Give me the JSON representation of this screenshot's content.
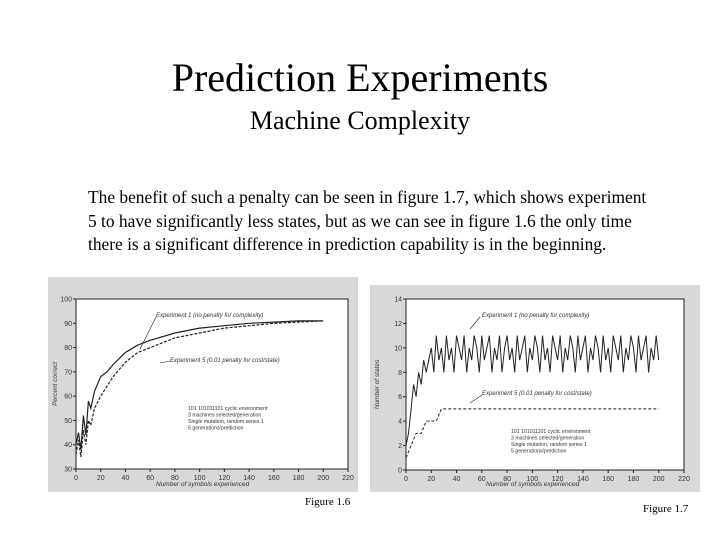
{
  "slide": {
    "title": "Prediction Experiments",
    "subtitle": "Machine Complexity",
    "body": "The benefit of such a penalty can be seen in figure 1.7, which shows experiment 5 to have significantly less states, but as we can see in figure 1.6 the only time there is a significant difference in prediction capability is in the beginning."
  },
  "colors": {
    "background": "#ffffff",
    "scan": "#d8d8d8",
    "ink": "#222222"
  },
  "chart_data": [
    {
      "type": "line",
      "caption": "Figure 1.6",
      "xlabel": "Number of symbols experienced",
      "ylabel": "Percent correct",
      "xlim": [
        0,
        220
      ],
      "ylim": [
        30,
        100
      ],
      "xticks": [
        0,
        20,
        40,
        60,
        80,
        100,
        120,
        140,
        160,
        180,
        200,
        220
      ],
      "xtick_labels": [
        "0",
        "20",
        "40",
        "60",
        "80",
        "100",
        "120",
        "140",
        "160",
        "180",
        "200",
        "220"
      ],
      "yticks": [
        30,
        40,
        50,
        60,
        70,
        80,
        90,
        100
      ],
      "series": [
        {
          "name": "Experiment 1 (no penalty for complexity)",
          "x": [
            0,
            2,
            4,
            6,
            8,
            10,
            12,
            15,
            20,
            25,
            30,
            40,
            50,
            60,
            80,
            100,
            120,
            140,
            160,
            180,
            200
          ],
          "y": [
            40,
            45,
            38,
            52,
            44,
            58,
            55,
            62,
            68,
            70,
            73,
            78,
            81,
            83,
            86,
            88,
            89,
            90,
            90.5,
            91,
            91
          ]
        },
        {
          "name": "Experiment 5 (0.01 penalty for cost/state)",
          "x": [
            0,
            2,
            4,
            6,
            8,
            10,
            12,
            15,
            20,
            25,
            30,
            40,
            50,
            60,
            80,
            100,
            120,
            140,
            160,
            180,
            200
          ],
          "y": [
            36,
            42,
            35,
            46,
            40,
            50,
            48,
            55,
            60,
            64,
            68,
            74,
            78,
            80,
            84,
            86,
            88,
            89,
            90,
            90.5,
            91
          ]
        }
      ],
      "annotations": [
        "101 101011101 cyclic environment",
        "3 machines selected/generation",
        "Single mutation, random series 1",
        "5 generations/prediction"
      ]
    },
    {
      "type": "line",
      "caption": "Figure 1.7",
      "xlabel": "Number of symbols experienced",
      "ylabel": "Number of states",
      "xlim": [
        0,
        220
      ],
      "ylim": [
        0,
        14
      ],
      "xticks": [
        0,
        20,
        40,
        60,
        80,
        100,
        120,
        140,
        160,
        180,
        200,
        220
      ],
      "xtick_labels": [
        "0",
        "20",
        "40",
        "60",
        "80",
        "100",
        "120",
        "140",
        "160",
        "180",
        "200",
        "220"
      ],
      "yticks": [
        0,
        2,
        4,
        6,
        8,
        10,
        12,
        14
      ],
      "series": [
        {
          "name": "Experiment 1 (no penalty for complexity)",
          "x": [
            0,
            2,
            4,
            6,
            8,
            10,
            12,
            14,
            16,
            18,
            20,
            22,
            24,
            26,
            28,
            30,
            32,
            34,
            36,
            38,
            40,
            42,
            44,
            46,
            48,
            50,
            52,
            54,
            56,
            58,
            60,
            62,
            64,
            66,
            68,
            70,
            72,
            74,
            76,
            78,
            80,
            82,
            84,
            86,
            88,
            90,
            92,
            94,
            96,
            98,
            100,
            102,
            104,
            106,
            108,
            110,
            112,
            114,
            116,
            118,
            120,
            122,
            124,
            126,
            128,
            130,
            132,
            134,
            136,
            138,
            140,
            142,
            144,
            146,
            148,
            150,
            152,
            154,
            156,
            158,
            160,
            162,
            164,
            166,
            168,
            170,
            172,
            174,
            176,
            178,
            180,
            182,
            184,
            186,
            188,
            190,
            192,
            194,
            196,
            198,
            200
          ],
          "y": [
            2,
            3,
            5,
            7,
            6,
            8,
            7,
            9,
            8,
            9,
            10,
            8,
            11,
            9,
            10,
            8,
            11,
            9,
            10,
            8,
            11,
            10,
            9,
            11,
            8,
            10,
            9,
            11,
            10,
            8,
            11,
            9,
            10,
            11,
            8,
            10,
            9,
            11,
            8,
            10,
            11,
            9,
            10,
            8,
            11,
            9,
            10,
            11,
            8,
            10,
            9,
            11,
            10,
            8,
            11,
            9,
            10,
            8,
            11,
            10,
            9,
            11,
            8,
            10,
            9,
            11,
            10,
            8,
            11,
            9,
            10,
            11,
            8,
            10,
            9,
            11,
            10,
            8,
            11,
            9,
            10,
            8,
            11,
            10,
            9,
            11,
            8,
            10,
            9,
            11,
            10,
            8,
            11,
            9,
            10,
            11,
            8,
            10,
            9,
            11,
            9
          ]
        },
        {
          "name": "Experiment 5 (0.01 penalty for cost/state)",
          "x": [
            0,
            4,
            8,
            12,
            16,
            20,
            24,
            28,
            30,
            30,
            200
          ],
          "y": [
            1,
            2,
            3,
            3,
            4,
            4,
            4,
            5,
            5,
            5,
            5
          ]
        }
      ],
      "annotations": [
        "101 101011101 cyclic environment",
        "3 machines selected/generation",
        "Single mutation, random series 1",
        "5 generations/prediction"
      ]
    }
  ]
}
